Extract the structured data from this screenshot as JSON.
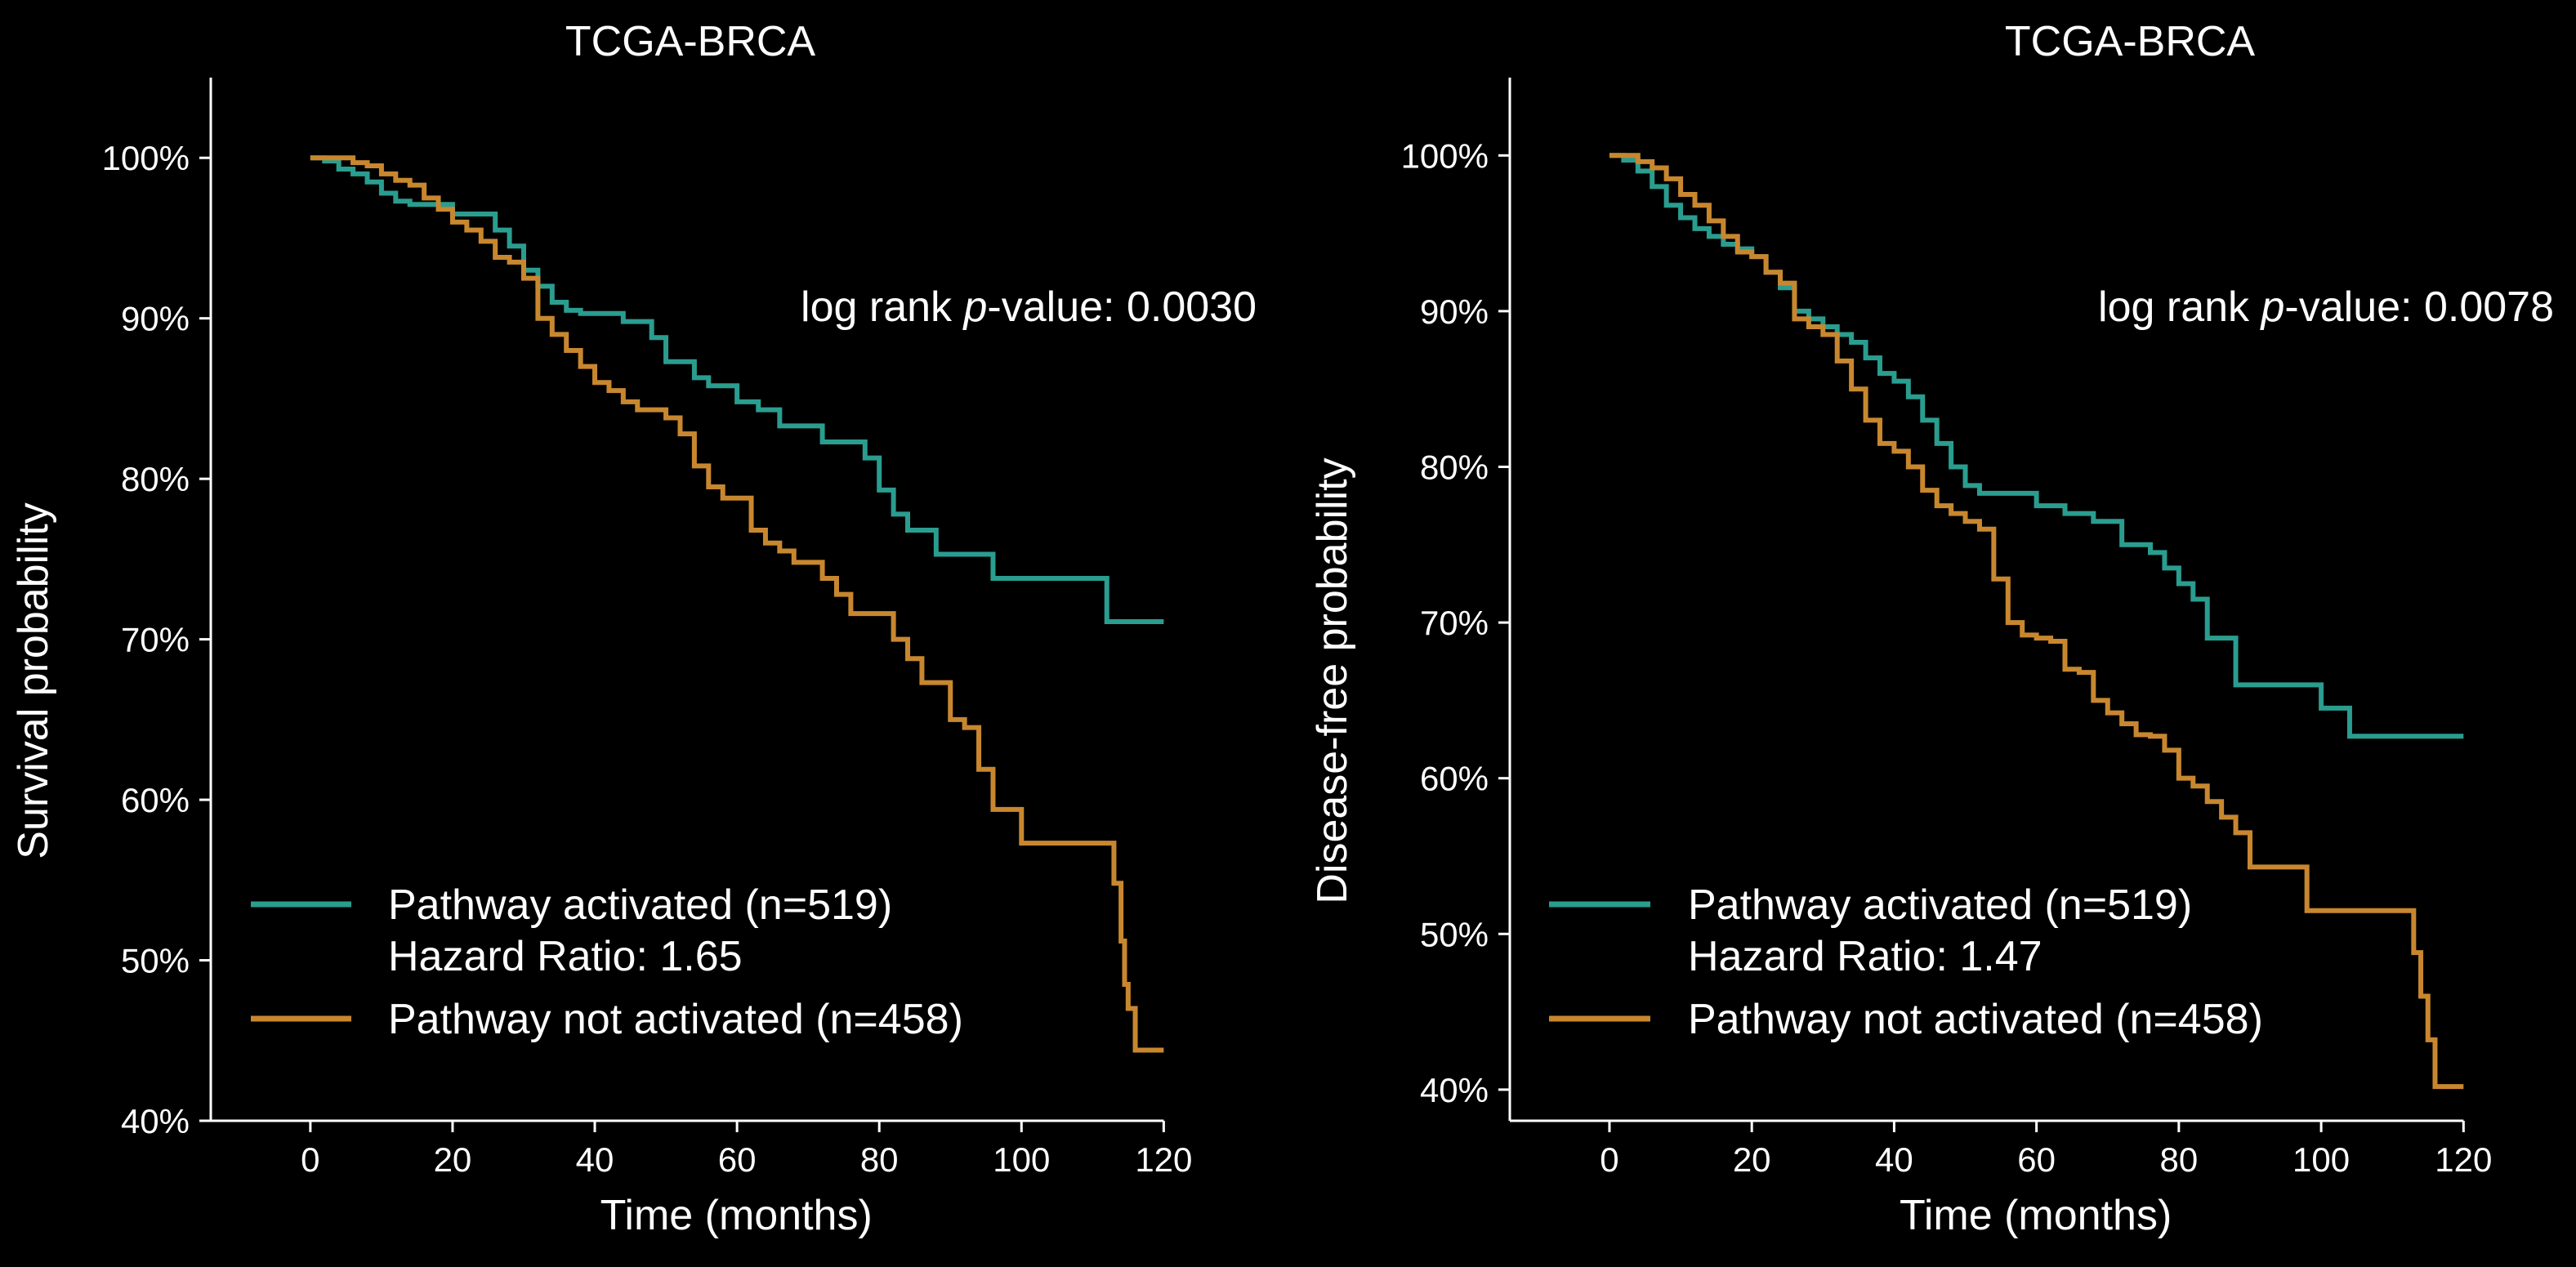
{
  "chart_data": [
    {
      "type": "line",
      "title": "TCGA-BRCA",
      "xlabel": "Time (months)",
      "ylabel": "Survival probability",
      "xlim": [
        -14,
        128
      ],
      "ylim": [
        40,
        105
      ],
      "xticks": [
        0,
        20,
        40,
        60,
        80,
        100,
        120
      ],
      "xtick_labels": [
        "0",
        "20",
        "40",
        "60",
        "80",
        "100",
        "120"
      ],
      "yticks": [
        40,
        50,
        60,
        70,
        80,
        90,
        100
      ],
      "ytick_labels": [
        "40%",
        "50%",
        "60%",
        "70%",
        "80%",
        "90%",
        "100%"
      ],
      "grid": false,
      "legend_position": "lower-left",
      "annotation": {
        "prefix": "log rank ",
        "italic": "p",
        "suffix": "-value: 0.0030"
      },
      "series": [
        {
          "name": "Pathway activated (n=519)",
          "legend_line2": "Hazard Ratio: 1.65",
          "color": "#2a9d8f",
          "x": [
            0,
            2,
            4,
            6,
            8,
            10,
            12,
            14,
            16,
            18,
            20,
            22,
            24,
            26,
            28,
            30,
            32,
            34,
            36,
            38,
            40,
            44,
            48,
            50,
            52,
            54,
            56,
            58,
            60,
            63,
            66,
            68,
            70,
            72,
            74,
            76,
            78,
            80,
            82,
            84,
            88,
            92,
            96,
            100,
            104,
            108,
            112,
            114,
            116,
            120
          ],
          "y": [
            100,
            99.8,
            99.3,
            99.0,
            98.5,
            97.8,
            97.3,
            97.1,
            97.1,
            97.1,
            96.5,
            96.5,
            96.5,
            95.5,
            94.5,
            93.0,
            92.0,
            91.0,
            90.5,
            90.3,
            90.3,
            89.8,
            88.8,
            87.3,
            87.3,
            86.3,
            85.8,
            85.8,
            84.8,
            84.3,
            83.3,
            83.3,
            83.3,
            82.3,
            82.3,
            82.3,
            81.3,
            79.3,
            77.8,
            76.8,
            75.3,
            75.3,
            73.8,
            73.8,
            73.8,
            73.8,
            71.1,
            71.1,
            71.1,
            71.1
          ]
        },
        {
          "name": "Pathway not activated (n=458)",
          "color": "#c8872f",
          "x": [
            0,
            2,
            4,
            6,
            8,
            10,
            12,
            14,
            16,
            18,
            20,
            22,
            24,
            26,
            28,
            30,
            32,
            34,
            36,
            38,
            40,
            42,
            44,
            46,
            48,
            50,
            52,
            54,
            56,
            58,
            60,
            62,
            64,
            66,
            68,
            70,
            72,
            74,
            76,
            78,
            80,
            82,
            84,
            86,
            88,
            90,
            92,
            94,
            96,
            100,
            104,
            108,
            112,
            113,
            114,
            114.5,
            115,
            116,
            120
          ],
          "y": [
            100,
            100,
            100,
            99.7,
            99.5,
            99.0,
            98.6,
            98.3,
            97.5,
            96.8,
            96.0,
            95.5,
            94.8,
            93.8,
            93.5,
            92.5,
            90.0,
            89.0,
            88.0,
            87.0,
            86.0,
            85.5,
            84.8,
            84.3,
            84.3,
            83.8,
            82.8,
            80.8,
            79.5,
            78.8,
            78.8,
            76.8,
            76.0,
            75.5,
            74.8,
            74.8,
            73.8,
            72.8,
            71.6,
            71.6,
            71.6,
            70.0,
            68.8,
            67.3,
            67.3,
            65.0,
            64.5,
            61.9,
            59.4,
            57.3,
            57.3,
            57.3,
            57.3,
            54.8,
            51.2,
            48.5,
            47.0,
            44.4,
            44.4
          ]
        }
      ]
    },
    {
      "type": "line",
      "title": "TCGA-BRCA",
      "xlabel": "Time (months)",
      "ylabel": "Disease-free probability",
      "xlim": [
        -14,
        128
      ],
      "ylim": [
        38,
        105
      ],
      "xticks": [
        0,
        20,
        40,
        60,
        80,
        100,
        120
      ],
      "xtick_labels": [
        "0",
        "20",
        "40",
        "60",
        "80",
        "100",
        "120"
      ],
      "yticks": [
        40,
        50,
        60,
        70,
        80,
        90,
        100
      ],
      "ytick_labels": [
        "40%",
        "50%",
        "60%",
        "70%",
        "80%",
        "90%",
        "100%"
      ],
      "grid": false,
      "legend_position": "lower-left",
      "annotation": {
        "prefix": "log rank ",
        "italic": "p",
        "suffix": "-value: 0.0078"
      },
      "series": [
        {
          "name": "Pathway activated (n=519)",
          "legend_line2": "Hazard Ratio: 1.47",
          "color": "#2a9d8f",
          "x": [
            0,
            2,
            4,
            6,
            8,
            10,
            12,
            14,
            16,
            18,
            20,
            22,
            24,
            26,
            28,
            30,
            32,
            34,
            36,
            38,
            40,
            42,
            44,
            46,
            48,
            50,
            52,
            56,
            60,
            64,
            68,
            72,
            76,
            78,
            80,
            82,
            84,
            88,
            92,
            96,
            100,
            104,
            108,
            112,
            116,
            120
          ],
          "y": [
            100,
            99.7,
            99.0,
            98.0,
            96.8,
            96.0,
            95.3,
            94.8,
            94.3,
            94.0,
            93.5,
            92.5,
            91.5,
            90.0,
            89.5,
            89.0,
            88.5,
            88.0,
            87.0,
            86.0,
            85.5,
            84.5,
            83.0,
            81.5,
            80.0,
            78.8,
            78.3,
            78.3,
            77.5,
            77.0,
            76.5,
            75.0,
            74.5,
            73.5,
            72.5,
            71.5,
            69.0,
            66.0,
            66.0,
            66.0,
            64.5,
            62.7,
            62.7,
            62.7,
            62.7,
            62.7
          ]
        },
        {
          "name": "Pathway not activated (n=458)",
          "color": "#c8872f",
          "x": [
            0,
            2,
            4,
            6,
            8,
            10,
            12,
            14,
            16,
            18,
            20,
            22,
            24,
            26,
            28,
            30,
            32,
            34,
            36,
            38,
            40,
            42,
            44,
            46,
            48,
            50,
            52,
            54,
            56,
            58,
            60,
            62,
            64,
            66,
            68,
            70,
            72,
            74,
            76,
            78,
            80,
            82,
            84,
            86,
            88,
            90,
            92,
            94,
            96,
            98,
            100,
            104,
            108,
            112,
            113,
            114,
            115,
            116,
            120
          ],
          "y": [
            100,
            100,
            99.6,
            99.2,
            98.5,
            97.5,
            96.8,
            95.8,
            94.8,
            93.8,
            93.5,
            92.5,
            91.8,
            89.5,
            89.0,
            88.5,
            86.8,
            85.0,
            83.0,
            81.5,
            81.0,
            80.0,
            78.5,
            77.5,
            77.0,
            76.5,
            76.0,
            72.8,
            70.0,
            69.2,
            69.0,
            68.8,
            67.0,
            66.8,
            65.0,
            64.2,
            63.5,
            62.8,
            62.7,
            61.8,
            60.0,
            59.5,
            58.5,
            57.5,
            56.5,
            54.3,
            54.3,
            54.3,
            54.3,
            51.5,
            51.5,
            51.5,
            51.5,
            51.5,
            48.8,
            46.0,
            43.2,
            40.2,
            40.2
          ]
        }
      ]
    }
  ]
}
